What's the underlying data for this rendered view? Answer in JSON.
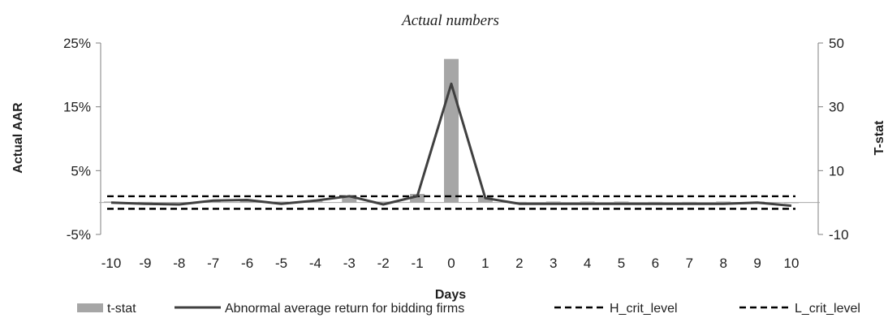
{
  "chart_data": {
    "type": "bar+line",
    "title": "Actual numbers",
    "xlabel": "Days",
    "ylabel_left": "Actual AAR",
    "ylabel_right": "T-stat",
    "x": [
      -10,
      -9,
      -8,
      -7,
      -6,
      -5,
      -4,
      -3,
      -2,
      -1,
      0,
      1,
      2,
      3,
      4,
      5,
      6,
      7,
      8,
      9,
      10
    ],
    "x_tick_labels": [
      "-10",
      "-9",
      "-8",
      "-7",
      "-6",
      "-5",
      "-4",
      "-3",
      "-2",
      "-1",
      "0",
      "1",
      "2",
      "3",
      "4",
      "5",
      "6",
      "7",
      "8",
      "9",
      "10"
    ],
    "y_left": {
      "ticks": [
        -5,
        5,
        15,
        25
      ],
      "tick_labels": [
        "-5%",
        "5%",
        "15%",
        "25%"
      ],
      "lim": [
        -5,
        25
      ]
    },
    "y_right": {
      "ticks": [
        -10,
        10,
        30,
        50
      ],
      "tick_labels": [
        "-10",
        "10",
        "30",
        "50"
      ],
      "lim": [
        -10,
        50
      ]
    },
    "series": [
      {
        "name": "t-stat",
        "kind": "bar",
        "axis": "right",
        "color": "#a6a6a6",
        "values": [
          0.3,
          0.2,
          0.1,
          0.5,
          0.7,
          0.3,
          0.5,
          2.2,
          0.3,
          2.7,
          45,
          1.8,
          0.2,
          0.3,
          0.3,
          0.3,
          0.2,
          0.2,
          0.3,
          0.3,
          -0.2
        ]
      },
      {
        "name": "Abnormal average return for bidding firms",
        "kind": "line",
        "axis": "left",
        "color": "#404040",
        "values": [
          0.0,
          -0.2,
          -0.3,
          0.3,
          0.4,
          -0.2,
          0.3,
          1.0,
          -0.3,
          1.0,
          18.6,
          0.7,
          -0.2,
          -0.2,
          -0.2,
          -0.2,
          -0.2,
          -0.2,
          -0.2,
          0.0,
          -0.5
        ]
      },
      {
        "name": "H_crit_level",
        "kind": "dashed",
        "axis": "right",
        "color": "#000000",
        "value": 1.96
      },
      {
        "name": "L_crit_level",
        "kind": "dashed",
        "axis": "right",
        "color": "#000000",
        "value": -1.96
      }
    ],
    "legend_position": "bottom",
    "grid": false
  }
}
